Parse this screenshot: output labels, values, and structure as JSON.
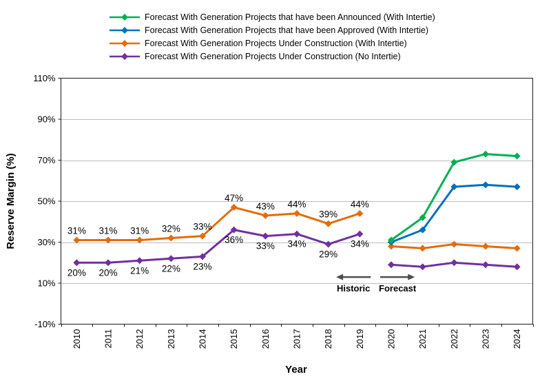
{
  "chart_data": {
    "type": "line",
    "title": "",
    "xlabel": "Year",
    "ylabel": "Reserve Margin (%)",
    "ylim": [
      -10,
      110
    ],
    "yticks": [
      {
        "value": 110,
        "label": "110%"
      },
      {
        "value": 90,
        "label": "90%"
      },
      {
        "value": 70,
        "label": "70%"
      },
      {
        "value": 50,
        "label": "50%"
      },
      {
        "value": 30,
        "label": "30%"
      },
      {
        "value": 10,
        "label": "10%"
      },
      {
        "value": -10,
        "label": "-10%"
      }
    ],
    "grid": "horizontal",
    "legend_position": "top",
    "categories": [
      "2010",
      "2011",
      "2012",
      "2013",
      "2014",
      "2015",
      "2016",
      "2017",
      "2018",
      "2019",
      "2020",
      "2021",
      "2022",
      "2023",
      "2024"
    ],
    "series": [
      {
        "name": "Forecast With Generation Projects that have been Announced (With Intertie)",
        "color": "#00B050",
        "marker": "diamond",
        "segments": [
          {
            "start_index": 10,
            "values": [
              31,
              42,
              69,
              73,
              72
            ]
          }
        ]
      },
      {
        "name": "Forecast With Generation Projects that have been Approved (With Intertie)",
        "color": "#0070C0",
        "marker": "diamond",
        "segments": [
          {
            "start_index": 10,
            "values": [
              30,
              36,
              57,
              58,
              57
            ]
          }
        ]
      },
      {
        "name": "Forecast With Generation Projects Under Construction (With Intertie)",
        "color": "#E36C0A",
        "marker": "diamond",
        "segments": [
          {
            "start_index": 0,
            "values": [
              31,
              31,
              31,
              32,
              33,
              47,
              43,
              44,
              39,
              44
            ],
            "labels": [
              "31%",
              "31%",
              "31%",
              "32%",
              "33%",
              "47%",
              "43%",
              "44%",
              "39%",
              "44%"
            ],
            "label_position": "above"
          },
          {
            "start_index": 10,
            "values": [
              28,
              27,
              29,
              28,
              27
            ]
          }
        ]
      },
      {
        "name": "Forecast With Generation Projects Under Construction (No Intertie)",
        "color": "#7030A0",
        "marker": "diamond",
        "segments": [
          {
            "start_index": 0,
            "values": [
              20,
              20,
              21,
              22,
              23,
              36,
              33,
              34,
              29,
              34
            ],
            "labels": [
              "20%",
              "20%",
              "21%",
              "22%",
              "23%",
              "36%",
              "33%",
              "34%",
              "29%",
              "34%"
            ],
            "label_position": "below"
          },
          {
            "start_index": 10,
            "values": [
              19,
              18,
              20,
              19,
              18
            ]
          }
        ]
      }
    ],
    "annotations": [
      {
        "text": "Historic",
        "direction": "left",
        "tail_cat": 9.35,
        "tip_cat": 8.25,
        "text_cat": 8.8,
        "arrow_y": 13,
        "text_y": 6
      },
      {
        "text": "Forecast",
        "direction": "right",
        "tail_cat": 9.65,
        "tip_cat": 10.75,
        "text_cat": 10.2,
        "arrow_y": 13,
        "text_y": 6
      }
    ],
    "colors": {
      "background": "#ffffff",
      "grid": "#bdbdbd",
      "axis": "#1a1a1a",
      "text": "#000000",
      "annotation_arrow": "#4d4d4d"
    }
  }
}
